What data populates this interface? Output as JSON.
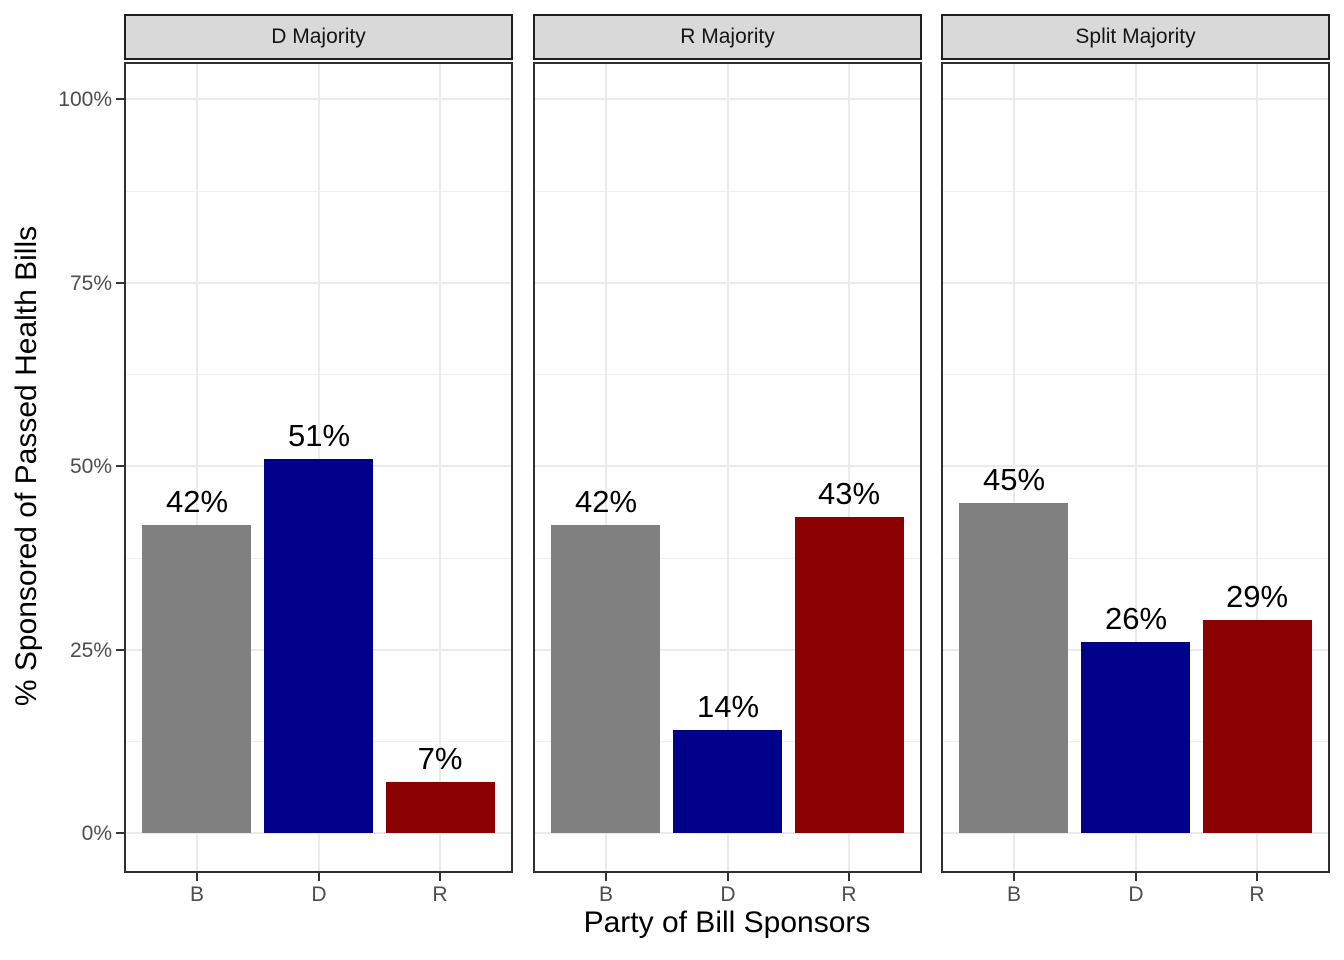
{
  "chart_data": {
    "type": "bar",
    "title": "",
    "xlabel": "Party of Bill Sponsors",
    "ylabel": "% Sponsored of Passed Health Bills",
    "categories": [
      "B",
      "D",
      "R"
    ],
    "facets": [
      {
        "label": "D Majority",
        "values": [
          42,
          51,
          7
        ]
      },
      {
        "label": "R Majority",
        "values": [
          42,
          14,
          43
        ]
      },
      {
        "label": "Split Majority",
        "values": [
          45,
          26,
          29
        ]
      }
    ],
    "bar_labels": [
      [
        "42%",
        "51%",
        "7%"
      ],
      [
        "42%",
        "14%",
        "43%"
      ],
      [
        "45%",
        "26%",
        "29%"
      ]
    ],
    "bar_colors": [
      "#808080",
      "#00008B",
      "#8B0000"
    ],
    "y_ticks": [
      "0%",
      "25%",
      "50%",
      "75%",
      "100%"
    ],
    "y_tick_values": [
      0,
      25,
      50,
      75,
      100
    ],
    "y_minor_values": [
      12.5,
      37.5,
      62.5,
      87.5
    ],
    "ylim": [
      0,
      100
    ],
    "grid": "major and minor horizontal, major vertical at categories",
    "legend": "none",
    "value_label_format": "percent"
  },
  "colors": {
    "bar_gray": "#808080",
    "bar_blue": "#00008B",
    "bar_red": "#8B0000",
    "strip_bg": "#D9D9D9",
    "strip_border": "#1f1f1f",
    "panel_border": "#2f2f2f",
    "grid_major": "#EBEBEB",
    "grid_minor": "#EFEFEF",
    "tick_mark": "#333333",
    "tick_label": "#4D4D4D",
    "text": "#000000",
    "background": "#FFFFFF"
  }
}
